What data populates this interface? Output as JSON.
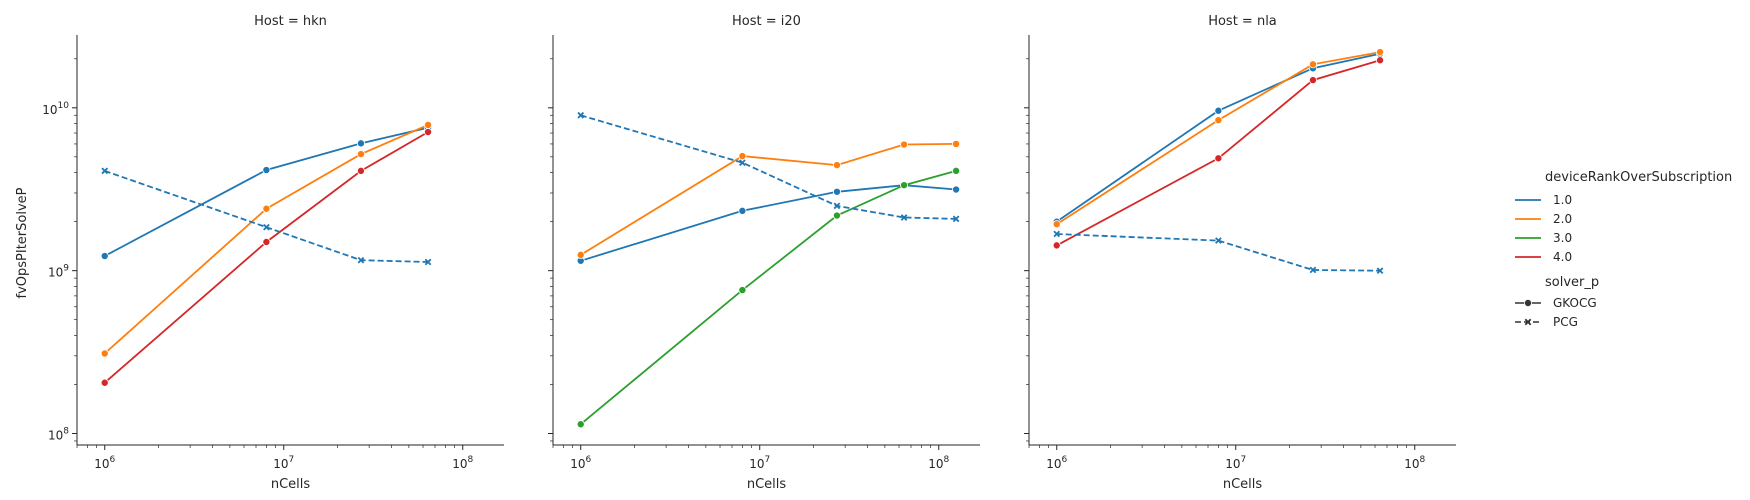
{
  "chart_data": {
    "type": "line",
    "xscale": "log",
    "yscale": "log",
    "xlabel": "nCells",
    "ylabel": "fvOpsPIterSolveP",
    "xlim": [
      700000,
      170000000
    ],
    "ylim": [
      85000000,
      28000000000
    ],
    "x_ticks": [
      1000000,
      10000000,
      100000000
    ],
    "x_tick_labels": [
      [
        "10",
        "6"
      ],
      [
        "10",
        "7"
      ],
      [
        "10",
        "8"
      ]
    ],
    "y_ticks": [
      100000000,
      1000000000,
      10000000000
    ],
    "y_tick_labels": [
      [
        "10",
        "8"
      ],
      [
        "10",
        "9"
      ],
      [
        "10",
        "10"
      ]
    ],
    "colors": {
      "1.0": "#1f77b4",
      "2.0": "#ff7f0e",
      "3.0": "#2ca02c",
      "4.0": "#d62728"
    },
    "legend": {
      "placement": "right",
      "hue_title": "deviceRankOverSubscription",
      "hue_entries": [
        "1.0",
        "2.0",
        "3.0",
        "4.0"
      ],
      "style_title": "solver_p",
      "style_entries": [
        "GKOCG",
        "PCG"
      ]
    },
    "panels": [
      {
        "title": "Host = hkn",
        "series": [
          {
            "hue": "1.0",
            "solver": "GKOCG",
            "x": [
              1000000,
              8000000,
              27000000,
              64000000
            ],
            "y": [
              1230000000,
              4150000000,
              6050000000,
              7550000000
            ]
          },
          {
            "hue": "2.0",
            "solver": "GKOCG",
            "x": [
              1000000,
              8000000,
              27000000,
              64000000
            ],
            "y": [
              310000000,
              2400000000,
              5200000000,
              7850000000
            ]
          },
          {
            "hue": "4.0",
            "solver": "GKOCG",
            "x": [
              1000000,
              8000000,
              27000000,
              64000000
            ],
            "y": [
              205000000,
              1500000000,
              4100000000,
              7100000000
            ]
          },
          {
            "hue": "1.0",
            "solver": "PCG",
            "x": [
              1000000,
              8000000,
              27000000,
              64000000
            ],
            "y": [
              4100000000,
              1850000000,
              1160000000,
              1130000000
            ]
          }
        ]
      },
      {
        "title": "Host = i20",
        "series": [
          {
            "hue": "1.0",
            "solver": "GKOCG",
            "x": [
              1000000,
              8000000,
              27000000,
              64000000,
              125000000
            ],
            "y": [
              1150000000,
              2330000000,
              3050000000,
              3350000000,
              3150000000
            ]
          },
          {
            "hue": "2.0",
            "solver": "GKOCG",
            "x": [
              1000000,
              8000000,
              27000000,
              64000000,
              125000000
            ],
            "y": [
              1250000000,
              5050000000,
              4450000000,
              5950000000,
              6000000000
            ]
          },
          {
            "hue": "3.0",
            "solver": "GKOCG",
            "x": [
              1000000,
              8000000,
              27000000,
              64000000,
              125000000
            ],
            "y": [
              114000000,
              760000000,
              2180000000,
              3350000000,
              4100000000
            ]
          },
          {
            "hue": "1.0",
            "solver": "PCG",
            "x": [
              1000000,
              8000000,
              27000000,
              64000000,
              125000000
            ],
            "y": [
              9000000000,
              4600000000,
              2500000000,
              2120000000,
              2080000000
            ]
          }
        ]
      },
      {
        "title": "Host = nla",
        "series": [
          {
            "hue": "1.0",
            "solver": "GKOCG",
            "x": [
              1000000,
              8000000,
              27000000,
              64000000
            ],
            "y": [
              2000000000,
              9600000000,
              17500000000,
              21500000000
            ]
          },
          {
            "hue": "2.0",
            "solver": "GKOCG",
            "x": [
              1000000,
              8000000,
              27000000,
              64000000
            ],
            "y": [
              1930000000,
              8400000000,
              18500000000,
              22000000000
            ]
          },
          {
            "hue": "4.0",
            "solver": "GKOCG",
            "x": [
              1000000,
              8000000,
              27000000,
              64000000
            ],
            "y": [
              1430000000,
              4900000000,
              14800000000,
              19600000000
            ]
          },
          {
            "hue": "1.0",
            "solver": "PCG",
            "x": [
              1000000,
              8000000,
              27000000,
              64000000
            ],
            "y": [
              1680000000,
              1530000000,
              1010000000,
              1000000000
            ]
          }
        ]
      }
    ]
  }
}
